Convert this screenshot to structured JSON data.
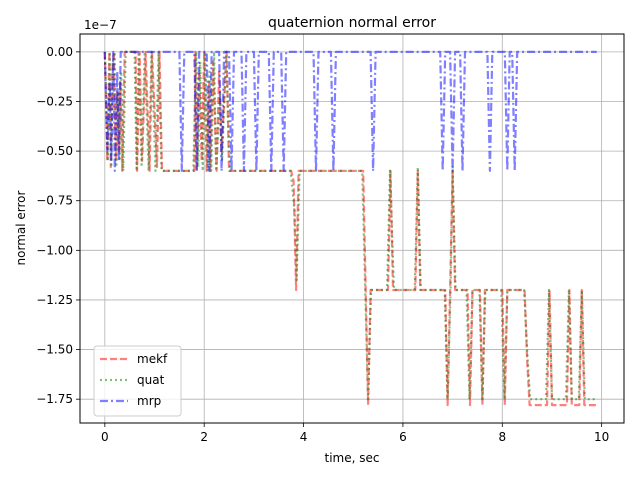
{
  "chart_data": {
    "type": "line",
    "title": "quaternion normal error",
    "xlabel": "time, sec",
    "ylabel": "normal error",
    "offset_text": "1e−7",
    "xlim": [
      -0.5,
      10.45
    ],
    "ylim": [
      -1.87,
      0.09
    ],
    "grid": true,
    "legend_position": "lower-left",
    "x_ticks": [
      0,
      2,
      4,
      6,
      8,
      10
    ],
    "x_tick_labels": [
      "0",
      "2",
      "4",
      "6",
      "8",
      "10"
    ],
    "y_ticks": [
      0.0,
      -0.25,
      -0.5,
      -0.75,
      -1.0,
      -1.25,
      -1.5,
      -1.75
    ],
    "y_tick_labels": [
      "0.00",
      "−0.25",
      "−0.50",
      "−0.75",
      "−1.00",
      "−1.25",
      "−1.50",
      "−1.75"
    ],
    "series": [
      {
        "name": "mekf",
        "color": "#ff0000",
        "style": "dashed",
        "points": [
          [
            0,
            0
          ],
          [
            0.02,
            -0.2
          ],
          [
            0.05,
            -0.55
          ],
          [
            0.09,
            0
          ],
          [
            0.12,
            -0.58
          ],
          [
            0.15,
            -0.1
          ],
          [
            0.18,
            0
          ],
          [
            0.22,
            -0.55
          ],
          [
            0.25,
            -0.2
          ],
          [
            0.28,
            -0.5
          ],
          [
            0.31,
            -0.15
          ],
          [
            0.35,
            -0.6
          ],
          [
            0.4,
            0
          ],
          [
            0.62,
            0
          ],
          [
            0.65,
            -0.6
          ],
          [
            0.7,
            0
          ],
          [
            0.75,
            -0.55
          ],
          [
            0.82,
            0
          ],
          [
            0.9,
            -0.6
          ],
          [
            0.95,
            0
          ],
          [
            1.05,
            -0.58
          ],
          [
            1.1,
            0
          ],
          [
            1.15,
            -0.6
          ],
          [
            1.8,
            -0.6
          ],
          [
            1.82,
            0
          ],
          [
            1.85,
            -0.6
          ],
          [
            1.9,
            -0.1
          ],
          [
            1.95,
            -0.55
          ],
          [
            2.0,
            0
          ],
          [
            2.05,
            -0.6
          ],
          [
            2.1,
            -0.15
          ],
          [
            2.12,
            -0.6
          ],
          [
            2.18,
            -0.05
          ],
          [
            2.25,
            -0.6
          ],
          [
            2.3,
            -0.1
          ],
          [
            2.35,
            -0.5
          ],
          [
            2.45,
            0
          ],
          [
            2.5,
            -0.6
          ],
          [
            2.6,
            -0.6
          ],
          [
            2.65,
            -0.6
          ],
          [
            3.75,
            -0.6
          ],
          [
            3.8,
            -0.65
          ],
          [
            3.85,
            -1.2
          ],
          [
            3.9,
            -0.6
          ],
          [
            5.2,
            -0.6
          ],
          [
            5.25,
            -1.2
          ],
          [
            5.3,
            -1.78
          ],
          [
            5.35,
            -1.2
          ],
          [
            5.7,
            -1.2
          ],
          [
            5.75,
            -0.6
          ],
          [
            5.8,
            -1.2
          ],
          [
            6.25,
            -1.2
          ],
          [
            6.3,
            -0.6
          ],
          [
            6.35,
            -1.2
          ],
          [
            6.85,
            -1.2
          ],
          [
            6.9,
            -1.78
          ],
          [
            6.95,
            -1.2
          ],
          [
            7.0,
            -0.6
          ],
          [
            7.05,
            -1.2
          ],
          [
            7.3,
            -1.2
          ],
          [
            7.35,
            -1.78
          ],
          [
            7.4,
            -1.2
          ],
          [
            7.55,
            -1.2
          ],
          [
            7.6,
            -1.78
          ],
          [
            7.65,
            -1.2
          ],
          [
            8.0,
            -1.2
          ],
          [
            8.05,
            -1.78
          ],
          [
            8.1,
            -1.2
          ],
          [
            8.45,
            -1.2
          ],
          [
            8.5,
            -1.55
          ],
          [
            8.55,
            -1.78
          ],
          [
            8.9,
            -1.78
          ],
          [
            8.95,
            -1.2
          ],
          [
            9.0,
            -1.78
          ],
          [
            9.3,
            -1.78
          ],
          [
            9.35,
            -1.2
          ],
          [
            9.4,
            -1.78
          ],
          [
            9.55,
            -1.78
          ],
          [
            9.6,
            -1.2
          ],
          [
            9.65,
            -1.78
          ],
          [
            9.9,
            -1.78
          ]
        ]
      },
      {
        "name": "quat",
        "color": "#008000",
        "style": "dotted",
        "points": [
          [
            0,
            0
          ],
          [
            0.03,
            -0.25
          ],
          [
            0.06,
            -0.55
          ],
          [
            0.1,
            0
          ],
          [
            0.13,
            -0.58
          ],
          [
            0.16,
            -0.05
          ],
          [
            0.2,
            0
          ],
          [
            0.23,
            -0.58
          ],
          [
            0.27,
            -0.2
          ],
          [
            0.3,
            -0.55
          ],
          [
            0.33,
            -0.1
          ],
          [
            0.37,
            -0.6
          ],
          [
            0.42,
            0
          ],
          [
            0.6,
            0
          ],
          [
            0.64,
            -0.6
          ],
          [
            0.68,
            0
          ],
          [
            0.74,
            -0.58
          ],
          [
            0.8,
            0
          ],
          [
            0.88,
            -0.6
          ],
          [
            0.94,
            0
          ],
          [
            1.02,
            -0.6
          ],
          [
            1.08,
            0
          ],
          [
            1.14,
            -0.6
          ],
          [
            1.78,
            -0.6
          ],
          [
            1.84,
            0
          ],
          [
            1.88,
            -0.58
          ],
          [
            1.92,
            -0.05
          ],
          [
            1.97,
            -0.6
          ],
          [
            2.02,
            0
          ],
          [
            2.07,
            -0.6
          ],
          [
            2.11,
            -0.1
          ],
          [
            2.14,
            -0.6
          ],
          [
            2.2,
            0
          ],
          [
            2.24,
            -0.6
          ],
          [
            2.32,
            -0.2
          ],
          [
            2.36,
            -0.55
          ],
          [
            2.44,
            0
          ],
          [
            2.52,
            -0.6
          ],
          [
            3.74,
            -0.6
          ],
          [
            3.82,
            -0.8
          ],
          [
            3.86,
            -1.15
          ],
          [
            3.92,
            -0.6
          ],
          [
            5.18,
            -0.6
          ],
          [
            5.24,
            -1.2
          ],
          [
            5.3,
            -1.75
          ],
          [
            5.36,
            -1.2
          ],
          [
            5.68,
            -1.2
          ],
          [
            5.74,
            -0.6
          ],
          [
            5.82,
            -1.2
          ],
          [
            6.24,
            -1.2
          ],
          [
            6.3,
            -0.58
          ],
          [
            6.36,
            -1.2
          ],
          [
            6.84,
            -1.2
          ],
          [
            6.9,
            -1.75
          ],
          [
            6.96,
            -1.2
          ],
          [
            7.0,
            -0.58
          ],
          [
            7.06,
            -1.2
          ],
          [
            7.28,
            -1.2
          ],
          [
            7.34,
            -1.75
          ],
          [
            7.4,
            -1.2
          ],
          [
            7.54,
            -1.2
          ],
          [
            7.6,
            -1.75
          ],
          [
            7.66,
            -1.2
          ],
          [
            7.98,
            -1.2
          ],
          [
            8.04,
            -1.75
          ],
          [
            8.1,
            -1.2
          ],
          [
            8.44,
            -1.2
          ],
          [
            8.5,
            -1.5
          ],
          [
            8.56,
            -1.75
          ],
          [
            8.88,
            -1.75
          ],
          [
            8.94,
            -1.2
          ],
          [
            9.0,
            -1.75
          ],
          [
            9.28,
            -1.75
          ],
          [
            9.34,
            -1.2
          ],
          [
            9.4,
            -1.75
          ],
          [
            9.54,
            -1.75
          ],
          [
            9.6,
            -1.2
          ],
          [
            9.66,
            -1.75
          ],
          [
            9.9,
            -1.75
          ]
        ]
      },
      {
        "name": "mrp",
        "color": "#0000ff",
        "style": "dashdot",
        "points": [
          [
            0,
            0
          ],
          [
            0.05,
            -0.5
          ],
          [
            0.1,
            -0.15
          ],
          [
            0.13,
            -0.55
          ],
          [
            0.17,
            0
          ],
          [
            0.2,
            -0.6
          ],
          [
            0.25,
            -0.1
          ],
          [
            0.28,
            -0.55
          ],
          [
            0.32,
            0
          ],
          [
            1.5,
            0
          ],
          [
            1.55,
            -0.6
          ],
          [
            1.6,
            0
          ],
          [
            1.8,
            0
          ],
          [
            1.85,
            -0.6
          ],
          [
            1.9,
            0
          ],
          [
            2.05,
            0
          ],
          [
            2.1,
            -0.6
          ],
          [
            2.15,
            0
          ],
          [
            2.3,
            0
          ],
          [
            2.35,
            -0.6
          ],
          [
            2.4,
            0
          ],
          [
            2.5,
            0
          ],
          [
            2.55,
            -0.6
          ],
          [
            2.6,
            0
          ],
          [
            2.75,
            0
          ],
          [
            2.8,
            -0.6
          ],
          [
            2.85,
            0
          ],
          [
            3.0,
            0
          ],
          [
            3.05,
            -0.6
          ],
          [
            3.1,
            0
          ],
          [
            3.3,
            0
          ],
          [
            3.35,
            -0.6
          ],
          [
            3.4,
            0
          ],
          [
            3.55,
            0
          ],
          [
            3.6,
            -0.6
          ],
          [
            3.65,
            0
          ],
          [
            4.2,
            0
          ],
          [
            4.25,
            -0.6
          ],
          [
            4.3,
            0
          ],
          [
            4.55,
            0
          ],
          [
            4.6,
            -0.6
          ],
          [
            4.65,
            0
          ],
          [
            5.35,
            0
          ],
          [
            5.4,
            -0.6
          ],
          [
            5.45,
            0
          ],
          [
            6.75,
            0
          ],
          [
            6.8,
            -0.6
          ],
          [
            6.85,
            0
          ],
          [
            6.95,
            0
          ],
          [
            7.0,
            -0.6
          ],
          [
            7.05,
            0
          ],
          [
            7.15,
            0
          ],
          [
            7.2,
            -0.6
          ],
          [
            7.25,
            0
          ],
          [
            7.7,
            0
          ],
          [
            7.75,
            -0.6
          ],
          [
            7.8,
            0
          ],
          [
            8.05,
            0
          ],
          [
            8.1,
            -0.6
          ],
          [
            8.15,
            0
          ],
          [
            8.2,
            0
          ],
          [
            8.25,
            -0.6
          ],
          [
            8.3,
            0
          ],
          [
            9.9,
            0
          ]
        ]
      }
    ]
  }
}
